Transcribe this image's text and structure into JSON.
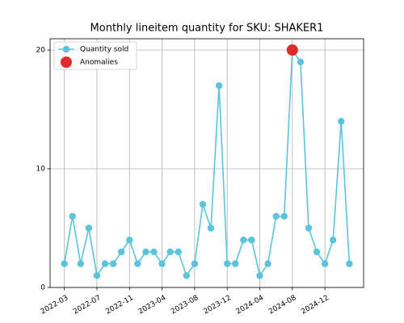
{
  "chart_data": {
    "type": "line",
    "title": "Monthly lineitem quantity for SKU: SHAKER1",
    "categories": [
      "2022-03",
      null,
      null,
      null,
      "2022-07",
      null,
      null,
      null,
      "2022-11",
      null,
      null,
      null,
      "2023-04",
      null,
      null,
      null,
      "2023-08",
      null,
      null,
      null,
      "2023-12",
      null,
      null,
      null,
      "2024-04",
      null,
      null,
      null,
      "2024-08",
      null,
      null,
      null,
      "2024-12",
      null,
      null,
      null
    ],
    "series": [
      {
        "name": "Quantity sold",
        "color": "#5bc4dc",
        "values": [
          2,
          6,
          2,
          5,
          1,
          2,
          2,
          3,
          4,
          2,
          3,
          3,
          2,
          3,
          3,
          1,
          2,
          7,
          5,
          17,
          2,
          2,
          4,
          4,
          1,
          2,
          6,
          6,
          20,
          19,
          5,
          3,
          2,
          4,
          14,
          2
        ]
      },
      {
        "name": "Anomalies",
        "color": "#e02b2b",
        "values": [
          null,
          null,
          null,
          null,
          null,
          null,
          null,
          null,
          null,
          null,
          null,
          null,
          null,
          null,
          null,
          null,
          null,
          null,
          null,
          null,
          null,
          null,
          null,
          null,
          null,
          null,
          null,
          null,
          20,
          null,
          null,
          null,
          null,
          null,
          null,
          null
        ]
      }
    ],
    "xlim": [
      -1.75,
      36.75
    ],
    "ylim": [
      0,
      20.95
    ],
    "yticks": [
      0,
      10,
      20
    ],
    "grid": true,
    "legend": "upper left"
  }
}
